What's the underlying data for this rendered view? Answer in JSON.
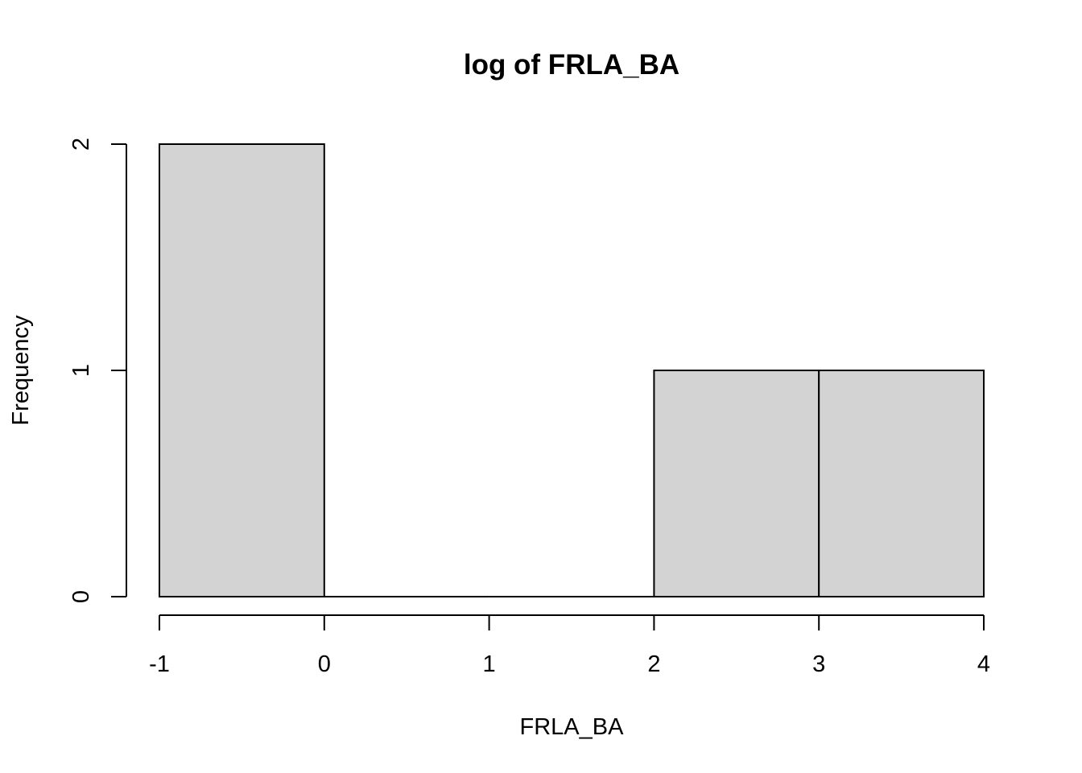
{
  "chart_data": {
    "type": "bar",
    "subtype": "histogram",
    "title": "log of FRLA_BA",
    "xlabel": "FRLA_BA",
    "ylabel": "Frequency",
    "bins": [
      {
        "from": -1,
        "to": 0,
        "count": 2
      },
      {
        "from": 0,
        "to": 1,
        "count": 0
      },
      {
        "from": 1,
        "to": 2,
        "count": 0
      },
      {
        "from": 2,
        "to": 3,
        "count": 1
      },
      {
        "from": 3,
        "to": 4,
        "count": 1
      }
    ],
    "xlim": [
      -1,
      4
    ],
    "ylim": [
      0,
      2
    ],
    "x_ticks": [
      "-1",
      "0",
      "1",
      "2",
      "3",
      "4"
    ],
    "y_ticks": [
      "0",
      "1",
      "2"
    ],
    "grid": false,
    "bar_fill": "#d3d3d3",
    "bar_stroke": "#000000"
  }
}
